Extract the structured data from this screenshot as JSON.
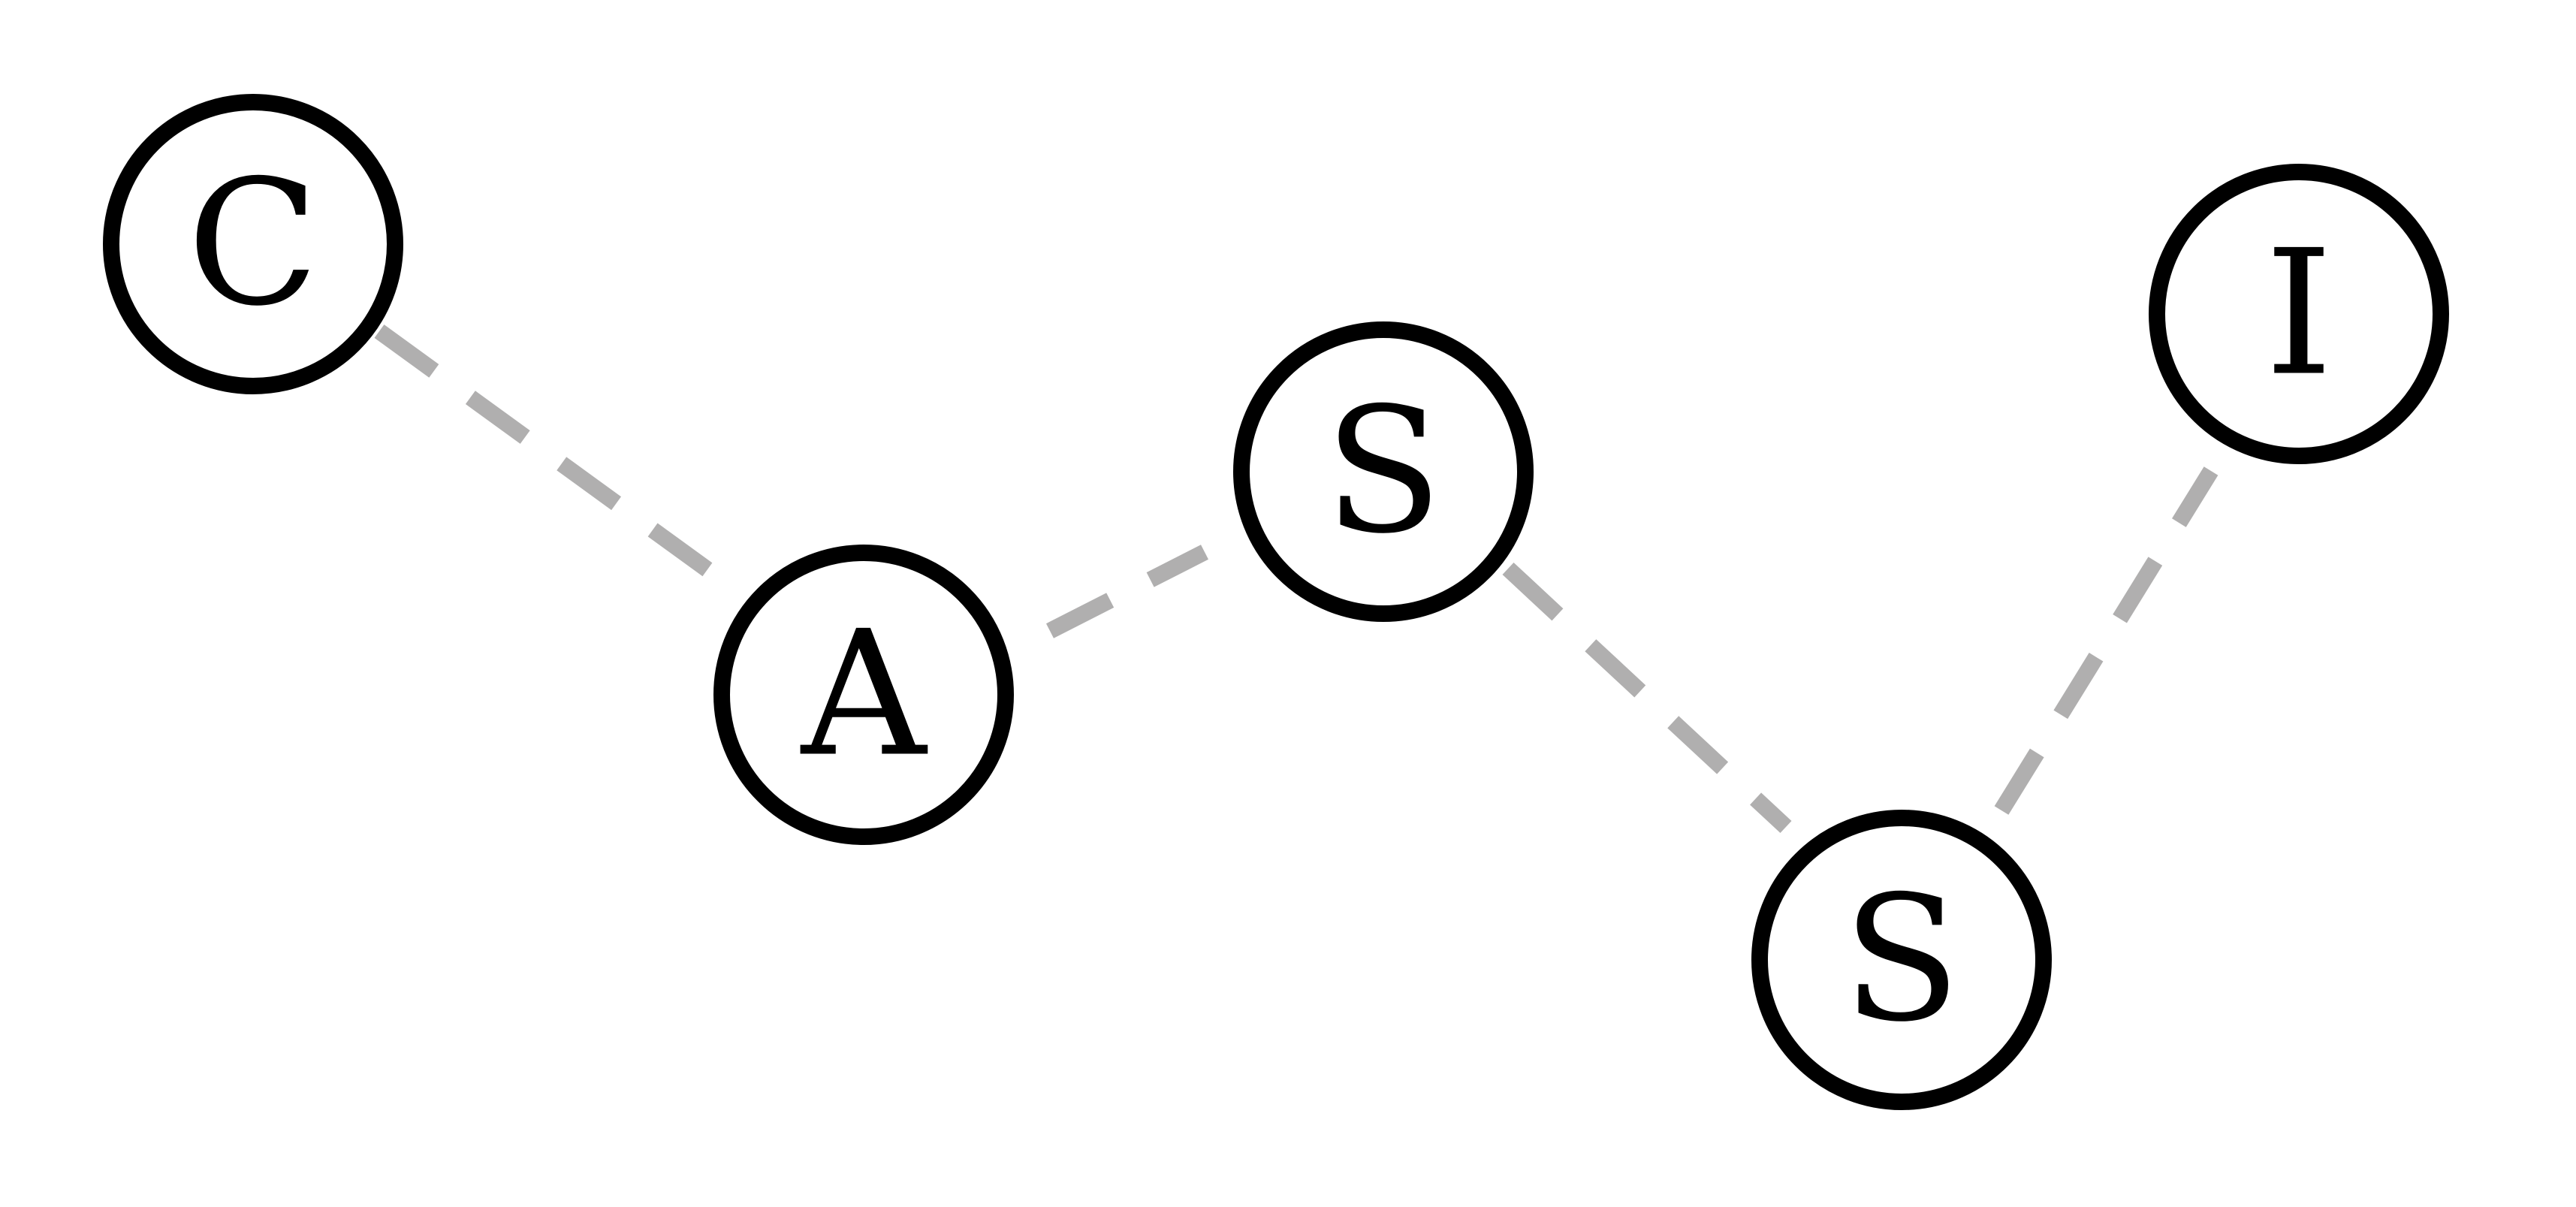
{
  "diagram": {
    "nodes": [
      {
        "id": "C",
        "label": "C"
      },
      {
        "id": "A",
        "label": "A"
      },
      {
        "id": "S1",
        "label": "S"
      },
      {
        "id": "S2",
        "label": "S"
      },
      {
        "id": "I",
        "label": "I"
      }
    ],
    "edges": [
      {
        "from": "C",
        "to": "A",
        "style": "dashed"
      },
      {
        "from": "A",
        "to": "S1",
        "style": "dashed"
      },
      {
        "from": "S1",
        "to": "S2",
        "style": "dashed"
      },
      {
        "from": "S2",
        "to": "I",
        "style": "dashed"
      }
    ],
    "colors": {
      "node_stroke": "#000000",
      "node_fill": "#ffffff",
      "edge": "#b0afaf",
      "background": "#ffffff"
    }
  }
}
